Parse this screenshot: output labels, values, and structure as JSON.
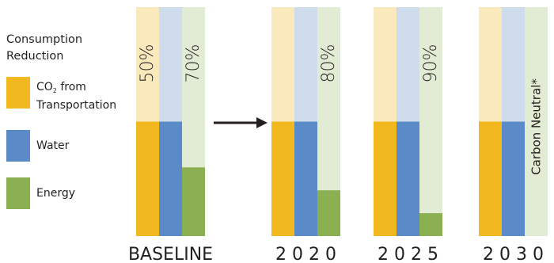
{
  "legend": {
    "title_line1": "Consumption",
    "title_line2": "Reduction",
    "items": [
      {
        "key": "co2",
        "label_main": "CO",
        "label_sub": "2",
        "label_tail": " from",
        "label_line2": "Transportation",
        "color": "#f2b81f",
        "light": "#fae9bc"
      },
      {
        "key": "water",
        "label": "Water",
        "color": "#5b8ac8",
        "light": "#cfdcee"
      },
      {
        "key": "energy",
        "label": "Energy",
        "color": "#8bb051",
        "light": "#e2ebd3"
      }
    ]
  },
  "chart_data": {
    "type": "bar",
    "categories": [
      "BASELINE",
      "2 0 2 0",
      "2 0 2 5",
      "2 0 3 0"
    ],
    "series": [
      {
        "name": "CO2 from Transportation",
        "values": [
          50,
          50,
          50,
          50
        ]
      },
      {
        "name": "Water",
        "values": [
          50,
          50,
          50,
          50
        ]
      },
      {
        "name": "Energy",
        "values": [
          30,
          20,
          10,
          0
        ]
      }
    ],
    "ylim": [
      0,
      100
    ],
    "annotations": [
      {
        "category": "BASELINE",
        "series": "CO2 from Transportation",
        "text": "50%"
      },
      {
        "category": "BASELINE",
        "series": "Energy",
        "text": "70%"
      },
      {
        "category": "2 0 2 0",
        "series": "Energy",
        "text": "80%"
      },
      {
        "category": "2 0 2 5",
        "series": "Energy",
        "text": "90%"
      },
      {
        "category": "2 0 3 0",
        "series": "Energy",
        "text": "Carbon Neutral*"
      }
    ],
    "arrow": "BASELINE to 2 0 2 0"
  }
}
